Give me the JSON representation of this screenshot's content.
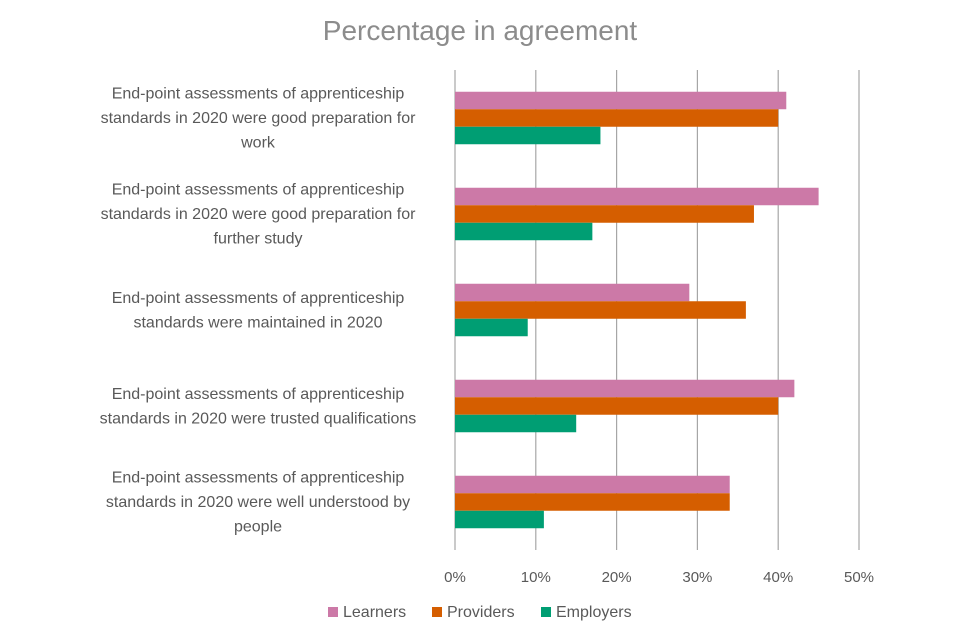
{
  "chart_data": {
    "type": "bar",
    "orientation": "horizontal",
    "title": "Percentage in agreement",
    "categories": [
      "End-point assessments of apprenticeship standards in 2020 were good preparation for work",
      "End-point assessments of apprenticeship standards in 2020 were good preparation for further study",
      "End-point assessments of apprenticeship standards were maintained in 2020",
      "End-point assessments of apprenticeship standards in 2020 were trusted qualifications",
      "End-point assessments of apprenticeship standards in 2020 were well understood by people"
    ],
    "category_lines": [
      [
        "End-point assessments of apprenticeship",
        "standards in 2020 were good preparation for",
        "work"
      ],
      [
        "End-point assessments of apprenticeship",
        "standards in 2020 were good preparation for",
        "further study"
      ],
      [
        "End-point assessments of apprenticeship",
        "standards were maintained in 2020"
      ],
      [
        "End-point assessments of apprenticeship",
        "standards in 2020 were trusted qualifications"
      ],
      [
        "End-point assessments of apprenticeship",
        "standards in 2020 were well understood by",
        "people"
      ]
    ],
    "series": [
      {
        "name": "Learners",
        "color": "#cc79a7",
        "values": [
          41,
          45,
          29,
          42,
          34
        ]
      },
      {
        "name": "Providers",
        "color": "#d55e00",
        "values": [
          40,
          37,
          36,
          40,
          34
        ]
      },
      {
        "name": "Employers",
        "color": "#009e73",
        "values": [
          18,
          17,
          9,
          15,
          11
        ]
      }
    ],
    "xlim": [
      0,
      50
    ],
    "xticks": [
      0,
      10,
      20,
      30,
      40,
      50
    ],
    "xtick_labels": [
      "0%",
      "10%",
      "20%",
      "30%",
      "40%",
      "50%"
    ],
    "xlabel": "",
    "ylabel": "",
    "grid": "vertical",
    "legend": "bottom"
  }
}
